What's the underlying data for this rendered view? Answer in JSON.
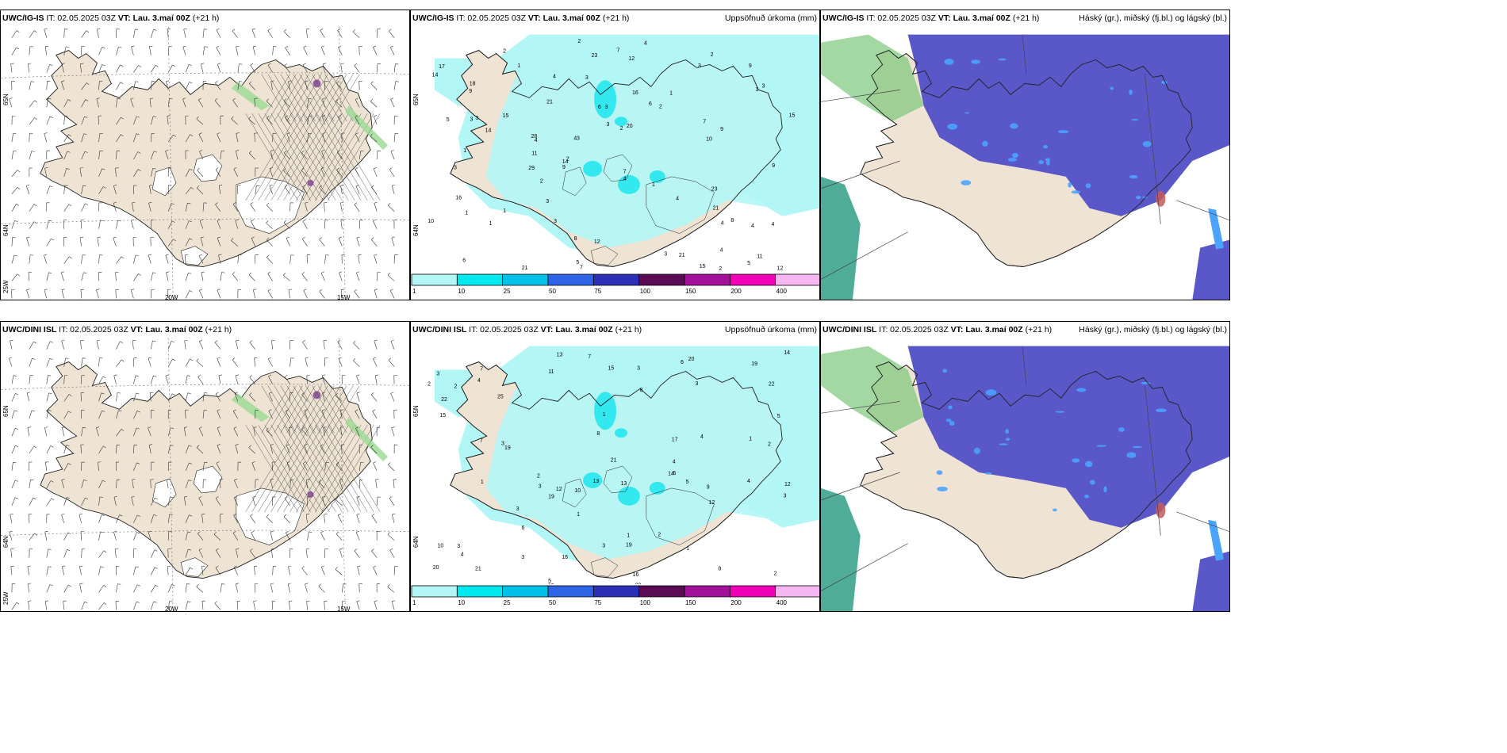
{
  "colors": {
    "land": "#efe3d4",
    "coast": "#222222",
    "precip_light": "#b3f6f6",
    "precip_mid": "#33e8ee",
    "cloud_low": "#5a57c8",
    "cloud_blue": "#4aa3ff",
    "cloud_high_green": "#7cc77a",
    "cloud_teal": "#2f9e86",
    "icing_purple": "#7a3b8f",
    "icing_green": "#9ad992",
    "red": "#c65b5b"
  },
  "rows": [
    {
      "model": "UWC/IG-IS",
      "panels": [
        {
          "model": "UWC/IG-IS",
          "it": "IT: 02.05.2025 03Z",
          "vt_label": "VT: Lau. 3.maí 00Z",
          "lead": "(+21 h)",
          "right": "",
          "axes": {
            "lat_top": "65N",
            "lat_bottom": "64N",
            "lat_bottom2": "25W",
            "lon_left": "20W",
            "lon_right": "15W"
          }
        },
        {
          "model": "UWC/IG-IS",
          "it": "IT: 02.05.2025 03Z",
          "vt_label": "VT: Lau. 3.maí 00Z",
          "lead": "(+21 h)",
          "right": "Uppsöfnuð úrkoma (mm)",
          "axes": {
            "lat_top": "65N",
            "lat_bottom": "64N"
          },
          "precip_values": [
            "1",
            "3",
            "4",
            "3",
            "1",
            "2",
            "7",
            "4",
            "1",
            "2",
            "3",
            "5",
            "3",
            "4",
            "7",
            "2",
            "6",
            "3",
            "4",
            "3",
            "9",
            "2",
            "14",
            "15",
            "21",
            "23",
            "21",
            "15",
            "10",
            "28",
            "5",
            "29",
            "4",
            "5",
            "3",
            "9",
            "16",
            "4",
            "14",
            "15",
            "12",
            "9",
            "23",
            "14",
            "8",
            "6",
            "7",
            "9",
            "7",
            "12",
            "3",
            "8",
            "11",
            "2",
            "17",
            "18",
            "11",
            "21",
            "16",
            "4",
            "12",
            "20",
            "2",
            "1",
            "5",
            "3",
            "4",
            "3",
            "6",
            "2",
            "1",
            "3",
            "1",
            "1",
            "9",
            "10",
            "21",
            "3",
            "2",
            "4",
            "1",
            "4"
          ]
        },
        {
          "model": "UWC/IG-IS",
          "it": "IT: 02.05.2025 03Z",
          "vt_label": "VT: Lau. 3.maí 00Z",
          "lead": "(+21 h)",
          "right": "Háský (gr.), miðský (fj.bl.) og lágský (bl.)"
        }
      ]
    },
    {
      "model": "UWC/DINI ISL",
      "panels": [
        {
          "model": "UWC/DINI ISL",
          "it": "IT: 02.05.2025 03Z",
          "vt_label": "VT: Lau. 3.maí 00Z",
          "lead": "(+21 h)",
          "right": "",
          "axes": {
            "lat_top": "65N",
            "lat_bottom": "64N",
            "lat_bottom2": "25W",
            "lon_left": "20W",
            "lon_right": "15W"
          }
        },
        {
          "model": "UWC/DINI ISL",
          "it": "IT: 02.05.2025 03Z",
          "vt_label": "VT: Lau. 3.maí 00Z",
          "lead": "(+21 h)",
          "right": "Uppsöfnuð úrkoma (mm)",
          "axes": {
            "lat_top": "65N",
            "lat_bottom": "64N"
          },
          "precip_values": [
            "1",
            "3",
            "4",
            "1",
            "1",
            "2",
            "3",
            "4",
            "5",
            "2",
            "3",
            "4",
            "3",
            "2",
            "19",
            "17",
            "19",
            "21",
            "13",
            "20",
            "19",
            "16",
            "20",
            "22",
            "15",
            "8",
            "12",
            "5",
            "3",
            "7",
            "6",
            "5",
            "8",
            "11",
            "25",
            "12",
            "14",
            "15",
            "8",
            "22",
            "16",
            "13",
            "19",
            "3",
            "14",
            "7",
            "12",
            "10",
            "2",
            "1",
            "3",
            "4",
            "2",
            "1",
            "3",
            "3",
            "6",
            "7",
            "12",
            "13",
            "20",
            "1",
            "2",
            "3",
            "9",
            "10",
            "21",
            "4",
            "2",
            "6"
          ]
        },
        {
          "model": "UWC/DINI ISL",
          "it": "IT: 02.05.2025 03Z",
          "vt_label": "VT: Lau. 3.maí 00Z",
          "lead": "(+21 h)",
          "right": "Háský (gr.), miðský (fj.bl.) og lágský (bl.)"
        }
      ]
    }
  ],
  "colorbar": {
    "labels": [
      "1",
      "10",
      "25",
      "50",
      "75",
      "100",
      "150",
      "200",
      "400"
    ],
    "colors": [
      "#b3f6f6",
      "#00e9ee",
      "#00c2e8",
      "#2f64e6",
      "#2b2fb5",
      "#5b0b54",
      "#a3109a",
      "#f000b7",
      "#f6b6f2"
    ]
  }
}
